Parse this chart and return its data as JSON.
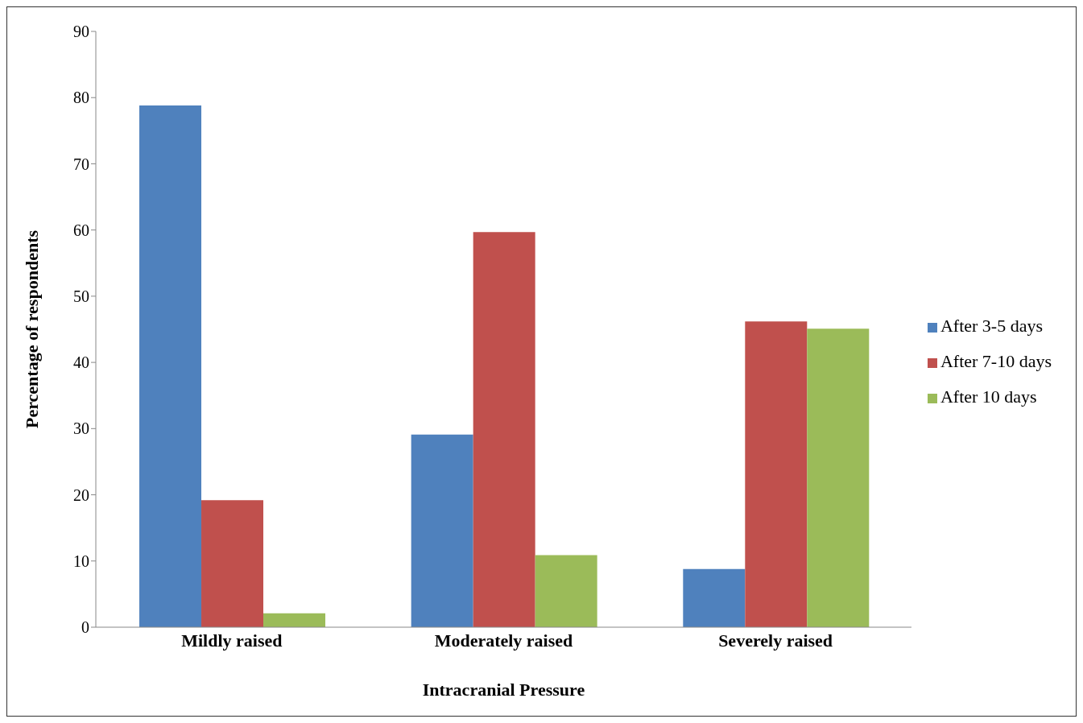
{
  "chart_data": {
    "type": "bar",
    "xlabel": "Intracranial Pressure",
    "ylabel": "Percentage of respondents",
    "categories": [
      "Mildly raised",
      "Moderately raised",
      "Severely raised"
    ],
    "series": [
      {
        "name": "After 3-5 days",
        "color": "#4f81bd",
        "values": [
          78.8,
          29.1,
          8.8
        ]
      },
      {
        "name": "After 7-10 days",
        "color": "#c0504d",
        "values": [
          19.2,
          59.7,
          46.2
        ]
      },
      {
        "name": "After 10 days",
        "color": "#9bbb59",
        "values": [
          2.1,
          10.9,
          45.1
        ]
      }
    ],
    "ylim": [
      0,
      90
    ],
    "yticks": [
      0,
      10,
      20,
      30,
      40,
      50,
      60,
      70,
      80,
      90
    ],
    "grid": false,
    "legend": "right"
  }
}
